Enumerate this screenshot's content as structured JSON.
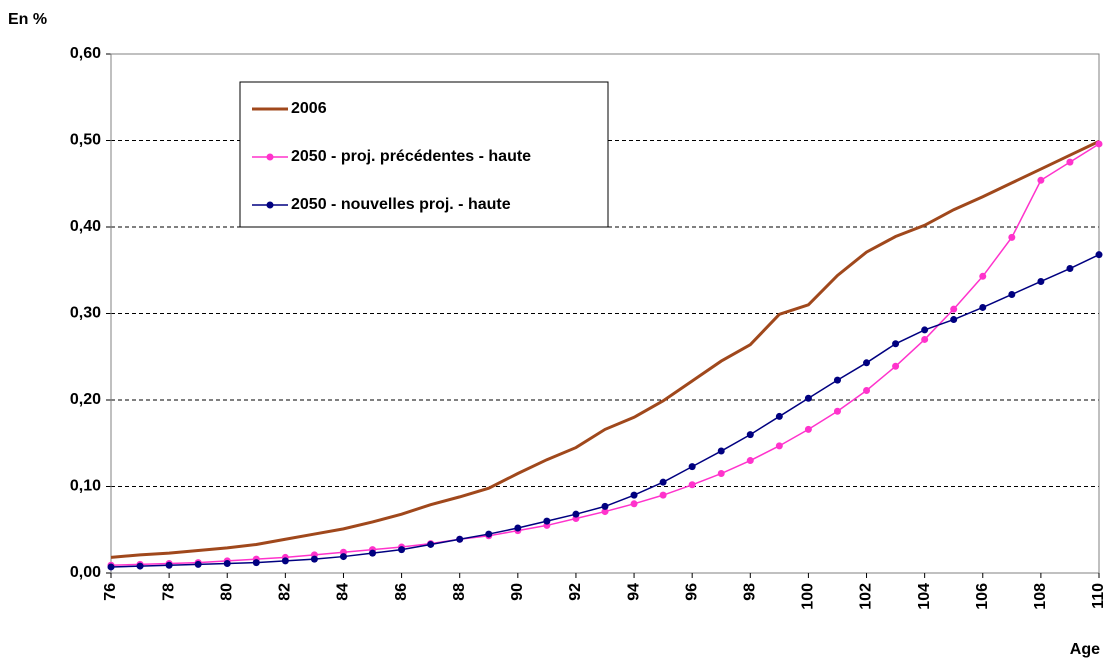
{
  "chart_data": {
    "type": "line",
    "ylabel": "En %",
    "xlabel": "Age",
    "x": [
      76,
      77,
      78,
      79,
      80,
      81,
      82,
      83,
      84,
      85,
      86,
      87,
      88,
      89,
      90,
      91,
      92,
      93,
      94,
      95,
      96,
      97,
      98,
      99,
      100,
      101,
      102,
      103,
      104,
      105,
      106,
      107,
      108,
      109,
      110
    ],
    "xlim": [
      76,
      110
    ],
    "xticks": [
      76,
      78,
      80,
      82,
      84,
      86,
      88,
      90,
      92,
      94,
      96,
      98,
      100,
      102,
      104,
      106,
      108,
      110
    ],
    "ylim": [
      0,
      0.6
    ],
    "yticks": [
      {
        "value": 0,
        "label": "0,00"
      },
      {
        "value": 0.1,
        "label": "0,10"
      },
      {
        "value": 0.2,
        "label": "0,20"
      },
      {
        "value": 0.3,
        "label": "0,30"
      },
      {
        "value": 0.4,
        "label": "0,40"
      },
      {
        "value": 0.5,
        "label": "0,50"
      },
      {
        "value": 0.6,
        "label": "0,60"
      }
    ],
    "grid": true,
    "series": [
      {
        "name": "2006",
        "color": "#a0481c",
        "marker": "none",
        "values": [
          0.018,
          0.021,
          0.023,
          0.026,
          0.029,
          0.033,
          0.039,
          0.045,
          0.051,
          0.059,
          0.068,
          0.079,
          0.088,
          0.098,
          0.115,
          0.131,
          0.145,
          0.166,
          0.18,
          0.199,
          0.222,
          0.245,
          0.264,
          0.299,
          0.31,
          0.344,
          0.371,
          0.389,
          0.402,
          0.42,
          0.435,
          0.451,
          0.467,
          0.483,
          0.499
        ]
      },
      {
        "name": "2050 - proj. précédentes - haute",
        "color": "#ff33cc",
        "marker": "circle",
        "values": [
          0.009,
          0.01,
          0.011,
          0.012,
          0.014,
          0.016,
          0.018,
          0.021,
          0.024,
          0.027,
          0.03,
          0.034,
          0.039,
          0.043,
          0.049,
          0.055,
          0.063,
          0.071,
          0.08,
          0.09,
          0.102,
          0.115,
          0.13,
          0.147,
          0.166,
          0.187,
          0.211,
          0.239,
          0.27,
          0.305,
          0.343,
          0.388,
          0.454,
          0.475,
          0.496
        ]
      },
      {
        "name": "2050 - nouvelles proj. - haute",
        "color": "#000080",
        "marker": "circle",
        "values": [
          0.007,
          0.008,
          0.009,
          0.01,
          0.011,
          0.012,
          0.014,
          0.016,
          0.019,
          0.023,
          0.027,
          0.033,
          0.039,
          0.045,
          0.052,
          0.06,
          0.068,
          0.077,
          0.09,
          0.105,
          0.123,
          0.141,
          0.16,
          0.181,
          0.202,
          0.223,
          0.243,
          0.265,
          0.281,
          0.293,
          0.307,
          0.322,
          0.337,
          0.352,
          0.368
        ]
      }
    ]
  }
}
